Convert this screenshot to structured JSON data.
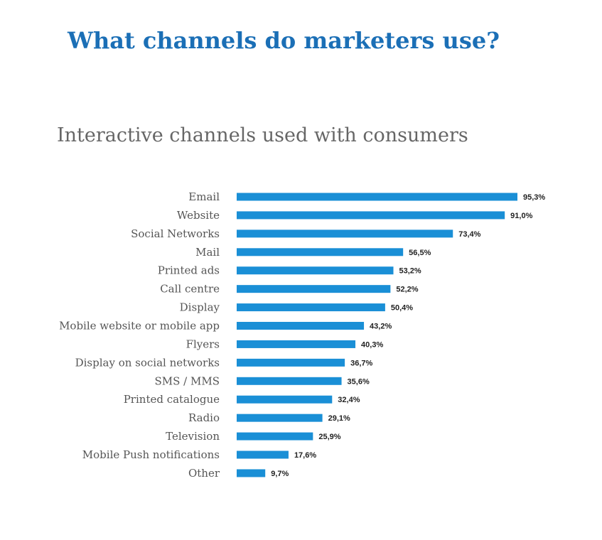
{
  "page": {
    "title": "What channels do marketers use?"
  },
  "colors": {
    "title": "#1b6fb6",
    "bar": "#1a8fd6",
    "subtitle": "#666666"
  },
  "chart_data": {
    "type": "bar",
    "orientation": "horizontal",
    "title": "Interactive channels used with consumers",
    "xlabel": "",
    "ylabel": "",
    "xlim": [
      0,
      100
    ],
    "grid": false,
    "legend": "none",
    "categories": [
      "Email",
      "Website",
      "Social Networks",
      "Mail",
      "Printed ads",
      "Call centre",
      "Display",
      "Mobile website or mobile app",
      "Flyers",
      "Display on social networks",
      "SMS / MMS",
      "Printed catalogue",
      "Radio",
      "Television",
      "Mobile Push notifications",
      "Other"
    ],
    "values": [
      95.3,
      91.0,
      73.4,
      56.5,
      53.2,
      52.2,
      50.4,
      43.2,
      40.3,
      36.7,
      35.6,
      32.4,
      29.1,
      25.9,
      17.6,
      9.7
    ],
    "value_labels": [
      "95,3%",
      "91,0%",
      "73,4%",
      "56,5%",
      "53,2%",
      "52,2%",
      "50,4%",
      "43,2%",
      "40,3%",
      "36,7%",
      "35,6%",
      "32,4%",
      "29,1%",
      "25,9%",
      "17,6%",
      "9,7%"
    ]
  }
}
